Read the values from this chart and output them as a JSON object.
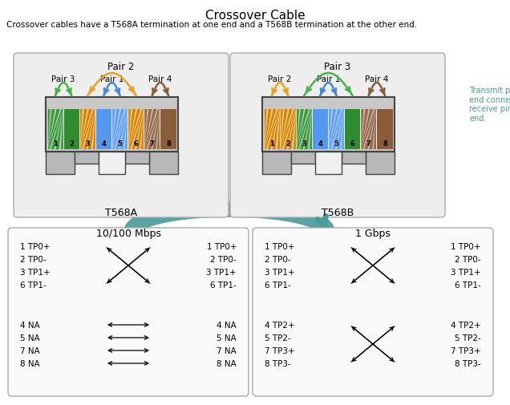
{
  "title": "Crossover Cable",
  "subtitle": "Crossover cables have a T568A termination at one end and a T568B termination at the other end.",
  "bg_color": "#ffffff",
  "side_note": "Transmit pins at each\nend connect to the\nreceive pins at the other\nend.",
  "left_label": "T568A",
  "right_label": "T568B",
  "left_top_pair": "Pair 2",
  "left_pair3": "Pair 3",
  "left_pair1": "Pair 1",
  "left_pair4": "Pair 4",
  "right_top_pair": "Pair 3",
  "right_pair2": "Pair 2",
  "right_pair1": "Pair 1",
  "right_pair4": "Pair 4",
  "teal": "#4a9a9a",
  "mbps_label": "10/100 Mbps",
  "gbps_label": "1 Gbps",
  "wire_568A": [
    [
      "#a8d8a8",
      "#2e8b2e"
    ],
    [
      "#2e8b2e",
      "#2e8b2e"
    ],
    [
      "#ffd080",
      "#c87800"
    ],
    [
      "#5599ee",
      "#5599ee"
    ],
    [
      "#aaccff",
      "#5599ee"
    ],
    [
      "#ffd080",
      "#c87800"
    ],
    [
      "#ccbbaa",
      "#8b5c3a"
    ],
    [
      "#8b5c3a",
      "#8b5c3a"
    ]
  ],
  "wire_568B": [
    [
      "#ffd080",
      "#c87800"
    ],
    [
      "#ffd080",
      "#c87800"
    ],
    [
      "#a8d8a8",
      "#2e8b2e"
    ],
    [
      "#5599ee",
      "#5599ee"
    ],
    [
      "#aaccff",
      "#5599ee"
    ],
    [
      "#2e8b2e",
      "#2e8b2e"
    ],
    [
      "#ccbbaa",
      "#8b5c3a"
    ],
    [
      "#8b5c3a",
      "#8b5c3a"
    ]
  ]
}
